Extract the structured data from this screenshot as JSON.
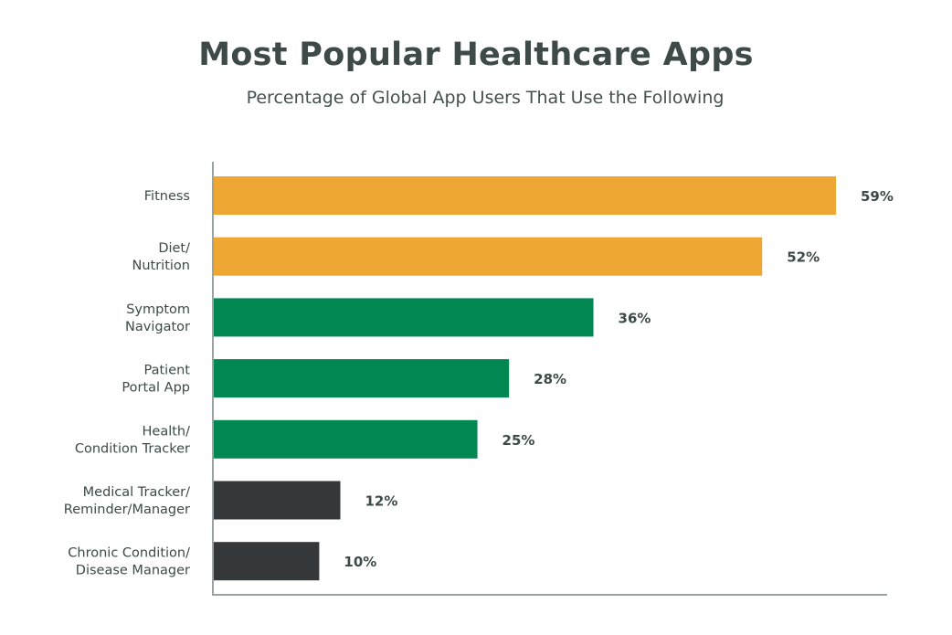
{
  "chart_data": {
    "type": "bar",
    "orientation": "horizontal",
    "title": "Most Popular Healthcare Apps",
    "subtitle": "Percentage of Global App Users That Use the Following",
    "xlabel": "",
    "ylabel": "",
    "xlim": [
      0,
      62
    ],
    "grid": false,
    "categories": [
      [
        "Fitness"
      ],
      [
        "Diet/",
        "Nutrition"
      ],
      [
        "Symptom",
        "Navigator"
      ],
      [
        "Patient",
        "Portal App"
      ],
      [
        "Health/",
        "Condition Tracker"
      ],
      [
        "Medical Tracker/",
        "Reminder/Manager"
      ],
      [
        "Chronic Condition/",
        "Disease Manager"
      ]
    ],
    "values": [
      59,
      52,
      36,
      28,
      25,
      12,
      10
    ],
    "labels": [
      "59%",
      "52%",
      "36%",
      "28%",
      "25%",
      "12%",
      "10%"
    ],
    "colors": [
      "#eda732",
      "#eda732",
      "#008752",
      "#008752",
      "#008752",
      "#35383b",
      "#35383b"
    ]
  }
}
